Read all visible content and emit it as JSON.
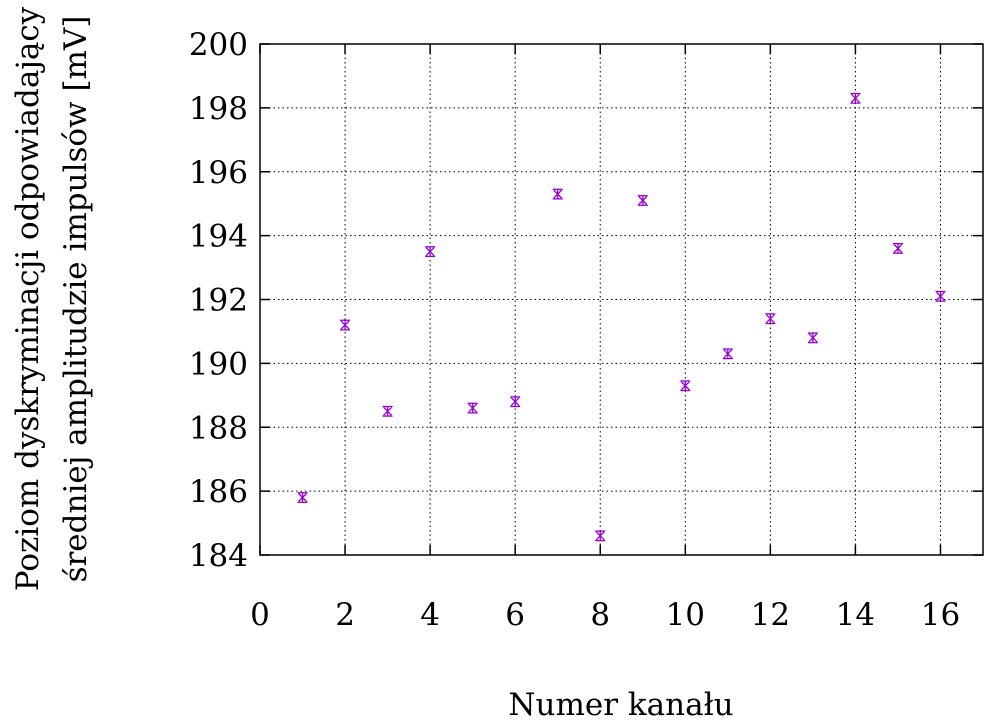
{
  "chart_data": {
    "type": "scatter",
    "xlabel": "Numer kanału",
    "ylabel_line1": "Poziom dyskryminacji odpowiadający",
    "ylabel_line2": "średniej amplitudzie impulsów [mV]",
    "xlim": [
      0,
      17
    ],
    "ylim": [
      184,
      200
    ],
    "xticks": [
      0,
      2,
      4,
      6,
      8,
      10,
      12,
      14,
      16
    ],
    "yticks": [
      184,
      186,
      188,
      190,
      192,
      194,
      196,
      198,
      200
    ],
    "grid": true,
    "series": [
      {
        "color": "#9400D3",
        "marker": "error-bar",
        "points": [
          {
            "x": 1,
            "y": 185.8,
            "err": 0.15
          },
          {
            "x": 2,
            "y": 191.2,
            "err": 0.15
          },
          {
            "x": 3,
            "y": 188.5,
            "err": 0.15
          },
          {
            "x": 4,
            "y": 193.5,
            "err": 0.15
          },
          {
            "x": 5,
            "y": 188.6,
            "err": 0.15
          },
          {
            "x": 6,
            "y": 188.8,
            "err": 0.15
          },
          {
            "x": 7,
            "y": 195.3,
            "err": 0.15
          },
          {
            "x": 8,
            "y": 184.6,
            "err": 0.15
          },
          {
            "x": 9,
            "y": 195.1,
            "err": 0.15
          },
          {
            "x": 10,
            "y": 189.3,
            "err": 0.15
          },
          {
            "x": 11,
            "y": 190.3,
            "err": 0.15
          },
          {
            "x": 12,
            "y": 191.4,
            "err": 0.15
          },
          {
            "x": 13,
            "y": 190.8,
            "err": 0.15
          },
          {
            "x": 14,
            "y": 198.3,
            "err": 0.15
          },
          {
            "x": 15,
            "y": 193.6,
            "err": 0.15
          },
          {
            "x": 16,
            "y": 192.1,
            "err": 0.15
          }
        ]
      }
    ]
  }
}
